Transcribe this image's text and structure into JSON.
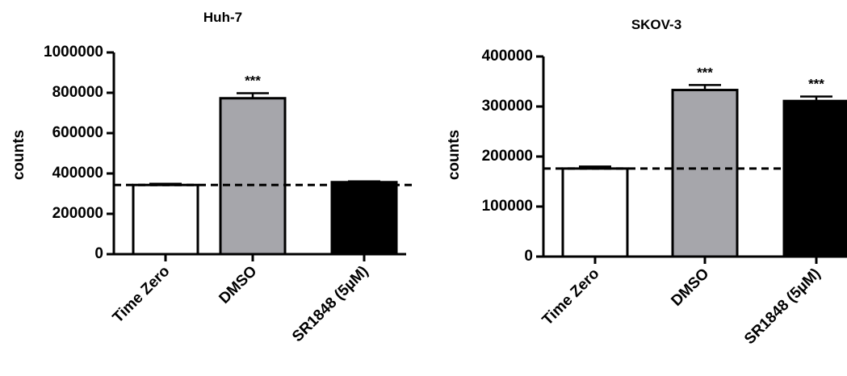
{
  "chart_data": [
    {
      "type": "bar",
      "title": "Huh-7",
      "xlabel": "",
      "ylabel": "counts",
      "categories": [
        "Time Zero",
        "DMSO",
        "SR1848 (5µM)"
      ],
      "values": [
        343000,
        773000,
        357000
      ],
      "errors": [
        6000,
        25000,
        4000
      ],
      "bar_colors": [
        "#ffffff",
        "#a6a6ab",
        "#000000"
      ],
      "significance": [
        "",
        "***",
        ""
      ],
      "ylim": [
        0,
        1000000
      ],
      "yticks": [
        0,
        200000,
        400000,
        600000,
        800000,
        1000000
      ],
      "ytick_labels": [
        "0",
        "200000",
        "400000",
        "600000",
        "800000",
        "1000000"
      ],
      "reference_line": 343000,
      "grid": false
    },
    {
      "type": "bar",
      "title": "SKOV-3",
      "xlabel": "",
      "ylabel": "counts",
      "categories": [
        "Time Zero",
        "DMSO",
        "SR1848 (5µM)"
      ],
      "values": [
        176000,
        333000,
        311000
      ],
      "errors": [
        4000,
        10000,
        9000
      ],
      "bar_colors": [
        "#ffffff",
        "#a6a6ab",
        "#000000"
      ],
      "significance": [
        "",
        "***",
        "***"
      ],
      "ylim": [
        0,
        400000
      ],
      "yticks": [
        0,
        100000,
        200000,
        300000,
        400000
      ],
      "ytick_labels": [
        "0",
        "100000",
        "200000",
        "300000",
        "400000"
      ],
      "reference_line": 176000,
      "grid": false
    }
  ]
}
